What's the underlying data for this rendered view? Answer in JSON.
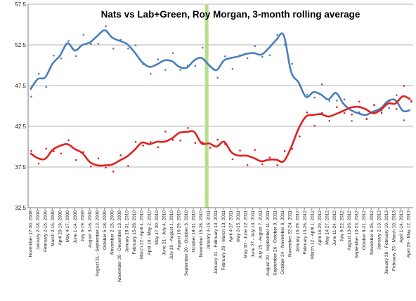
{
  "chart_data": {
    "type": "line",
    "title": "Nats vs Lab+Green, Roy Morgan, 3-month rolling average",
    "ylim": [
      32.5,
      57.5
    ],
    "yticks": [
      "32.5",
      "37.5",
      "42.5",
      "47.5",
      "52.5",
      "57.5"
    ],
    "grid": true,
    "legend": "none",
    "highlight_label_index": 24,
    "highlight_color": "#b5e08a",
    "xlabels": [
      "November 17-30, 2008",
      "January 2-18, 2009",
      "February 2-15, 2009",
      "March 2-15, 2009",
      "April 20-19, 2009",
      "May 4-17, 2009",
      "June 1-14, 2009",
      "July 6-19, 2009",
      "August 3-16, 2009",
      "August 31 - September 13, 2009",
      "October 5-18, 2009",
      "November 2-15, 2009",
      "November 30 - December 13, 2009",
      "January 18-31, 2010",
      "February 15-28, 2010",
      "March 22 - April 4, 2010",
      "April 19 - May 2, 2010",
      "May 17-30, 2010",
      "June 21 - July 4, 2010",
      "July 19 - August 1, 2010",
      "August 16-29, 2010",
      "September 20 - October 3, 2010",
      "October 18-31, 2010",
      "November 15-28, 2010",
      "January 4-16, 2011",
      "January 31 - February 13, 2011",
      "February 28 - March 13, 2011",
      "April 4-17, 2011",
      "May 2-15, 2011",
      "May 30 - June 12, 2011",
      "June 27 - July 10, 2011",
      "July 25 - August 7, 2011",
      "August 29 - September 11, 2011",
      "September 26 - October 9, 2011",
      "October 24 - November 6, 2011",
      "November 22-24, 2011",
      "January 16-29, 2012",
      "February 13-26, 2012",
      "March 12 - April 1, 2012",
      "April 16-29, 2012",
      "May 14-27, 2012",
      "June 11-24, 2012",
      "July 9-22, 2012",
      "August 13-26, 2012",
      "September 10-23, 2012",
      "October 8-21, 2012",
      "November 5-25, 2012",
      "January 2-13, 2013",
      "January 28 - February 10, 2013",
      "February 25 - March 10, 2013",
      "April 1-14, 2013",
      "April 29 - May 12, 2013"
    ],
    "series": [
      {
        "color": "#4a7ebb",
        "values": [
          47.0,
          48.3,
          48.5,
          50.2,
          51.2,
          52.7,
          51.8,
          52.5,
          52.8,
          53.6,
          54.3,
          53.4,
          53.0,
          52.6,
          51.6,
          50.4,
          49.8,
          50.1,
          50.6,
          50.5,
          49.8,
          49.7,
          50.6,
          50.9,
          50.0,
          49.4,
          50.6,
          50.9,
          51.1,
          51.4,
          51.5,
          51.3,
          52.1,
          53.1,
          53.7,
          49.2,
          47.9,
          46.1,
          46.7,
          46.4,
          45.8,
          46.6,
          45.3,
          44.5,
          44.1,
          43.9,
          44.3,
          44.7,
          45.6,
          45.7,
          44.4,
          44.5
        ]
      },
      {
        "color": "#e0201f",
        "values": [
          39.2,
          38.6,
          38.5,
          39.6,
          40.1,
          40.3,
          39.7,
          39.2,
          38.1,
          37.7,
          37.7,
          37.8,
          38.3,
          38.8,
          39.6,
          40.5,
          40.3,
          40.6,
          40.6,
          41.0,
          41.7,
          41.8,
          41.8,
          40.4,
          40.4,
          40.0,
          40.6,
          39.3,
          38.9,
          38.9,
          38.6,
          38.2,
          38.4,
          38.4,
          38.2,
          39.9,
          42.2,
          43.7,
          43.9,
          44.0,
          43.7,
          44.0,
          44.4,
          44.8,
          44.9,
          44.6,
          44.1,
          44.5,
          45.3,
          45.3,
          46.2,
          45.8
        ]
      }
    ]
  }
}
